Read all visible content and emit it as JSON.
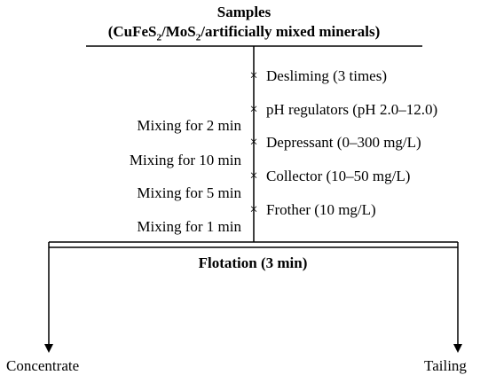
{
  "header": {
    "title": "Samples",
    "subtitle_parts": [
      "(CuFeS",
      "2",
      "/MoS",
      "2",
      "/artificially mixed minerals)"
    ]
  },
  "steps": [
    {
      "label": "Desliming (3 times)",
      "marker": "×"
    },
    {
      "label": "pH regulators (pH 2.0–12.0)",
      "marker": "×"
    },
    {
      "label": "Depressant (0–300 mg/L)",
      "marker": "×"
    },
    {
      "label": "Collector (10–50 mg/L)",
      "marker": "×"
    },
    {
      "label": "Frother (10 mg/L)",
      "marker": "×"
    }
  ],
  "mixing": [
    "Mixing for 2 min",
    "Mixing for 10 min",
    "Mixing for 5 min",
    "Mixing for 1 min"
  ],
  "flotation": {
    "label": "Flotation (3 min)"
  },
  "outputs": {
    "left": "Concentrate",
    "right": "Tailing"
  }
}
